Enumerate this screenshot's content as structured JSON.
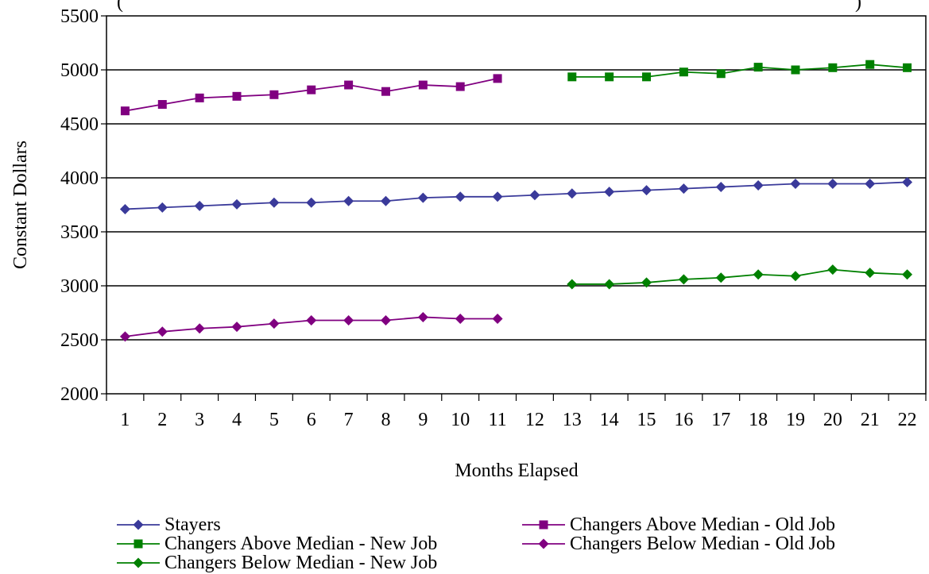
{
  "page": {
    "title_fragment": "(",
    "title_fragment_right": ")"
  },
  "chart_data": {
    "type": "line",
    "title": "",
    "xlabel": "Months Elapsed",
    "ylabel": "Constant Dollars",
    "ylim": [
      2000,
      5500
    ],
    "yticks": [
      2000,
      2500,
      3000,
      3500,
      4000,
      4500,
      5000,
      5500
    ],
    "grid": "horizontal",
    "legend_position": "bottom",
    "categories": [
      "1",
      "2",
      "3",
      "4",
      "5",
      "6",
      "7",
      "8",
      "9",
      "10",
      "11",
      "12",
      "13",
      "14",
      "15",
      "16",
      "17",
      "18",
      "19",
      "20",
      "21",
      "22"
    ],
    "series": [
      {
        "name": "Stayers",
        "color": "#3a3a9a",
        "marker": "diamond",
        "values": [
          3710,
          3725,
          3740,
          3755,
          3770,
          3770,
          3785,
          3785,
          3815,
          3825,
          3825,
          3840,
          3855,
          3870,
          3885,
          3900,
          3915,
          3930,
          3945,
          3945,
          3945,
          3960
        ]
      },
      {
        "name": "Changers Above Median - Old Job",
        "color": "#800080",
        "marker": "square",
        "values": [
          4620,
          4680,
          4740,
          4755,
          4770,
          4815,
          4860,
          4800,
          4860,
          4845,
          4920,
          null,
          null,
          null,
          null,
          null,
          null,
          null,
          null,
          null,
          null,
          null
        ]
      },
      {
        "name": "Changers Above Median - New Job",
        "color": "#008000",
        "marker": "square",
        "values": [
          null,
          null,
          null,
          null,
          null,
          null,
          null,
          null,
          null,
          null,
          null,
          null,
          4935,
          4935,
          4935,
          4980,
          4965,
          5025,
          5000,
          5020,
          5050,
          5020
        ]
      },
      {
        "name": "Changers Below Median - Old Job",
        "color": "#800080",
        "marker": "diamond",
        "values": [
          2530,
          2575,
          2605,
          2620,
          2650,
          2680,
          2680,
          2680,
          2710,
          2695,
          2695,
          null,
          null,
          null,
          null,
          null,
          null,
          null,
          null,
          null,
          null,
          null
        ]
      },
      {
        "name": "Changers Below Median - New Job",
        "color": "#008000",
        "marker": "diamond",
        "values": [
          null,
          null,
          null,
          null,
          null,
          null,
          null,
          null,
          null,
          null,
          null,
          null,
          3015,
          3015,
          3030,
          3060,
          3075,
          3105,
          3090,
          3150,
          3120,
          3105
        ]
      }
    ]
  }
}
